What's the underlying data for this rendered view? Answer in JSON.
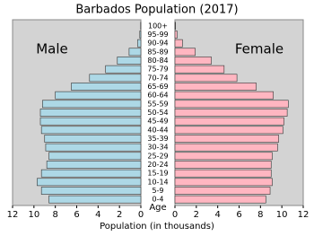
{
  "chart_data": {
    "type": "pyramid",
    "title": "Barbados Population (2017)",
    "xlabel": "Population (in thousands)",
    "category_label": "Age",
    "categories": [
      "0-4",
      "5-9",
      "10-14",
      "15-19",
      "20-24",
      "25-29",
      "30-34",
      "35-39",
      "40-44",
      "45-49",
      "50-54",
      "55-59",
      "60-64",
      "65-69",
      "70-74",
      "75-79",
      "80-84",
      "85-89",
      "90-94",
      "95-99",
      "100+"
    ],
    "series": [
      {
        "name": "Male",
        "color": "#add8e6",
        "values": [
          8.6,
          9.3,
          9.7,
          9.3,
          8.8,
          8.6,
          8.9,
          9.0,
          9.3,
          9.4,
          9.4,
          9.2,
          8.0,
          6.5,
          4.8,
          3.3,
          2.2,
          1.1,
          0.3,
          0.1,
          0.02
        ]
      },
      {
        "name": "Female",
        "color": "#ffb6c1",
        "values": [
          8.5,
          8.9,
          9.1,
          9.0,
          9.0,
          9.1,
          9.6,
          9.7,
          10.1,
          10.2,
          10.5,
          10.6,
          9.2,
          7.6,
          5.8,
          4.6,
          3.4,
          1.9,
          0.7,
          0.2,
          0.05
        ]
      }
    ],
    "xlim": [
      0,
      12
    ],
    "xticks": [
      0,
      2,
      4,
      6,
      8,
      10,
      12
    ],
    "background": "#d3d3d3"
  }
}
